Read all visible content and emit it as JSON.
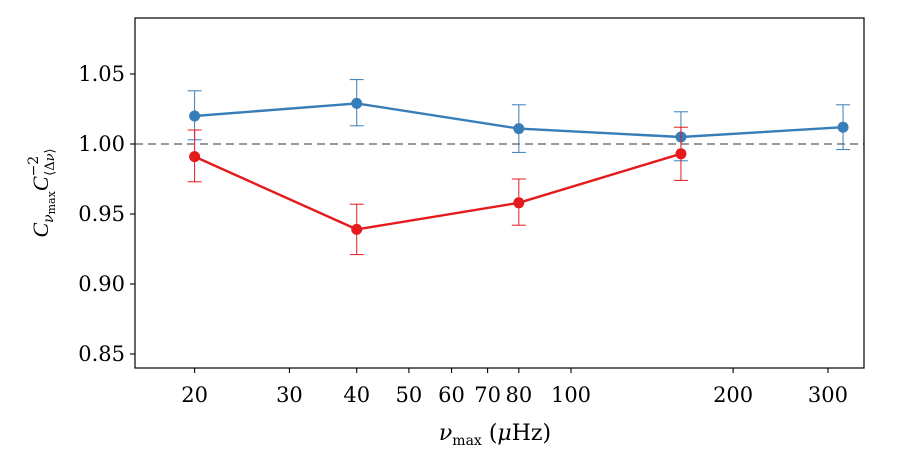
{
  "chart_data": {
    "type": "line",
    "title": "",
    "xlabel": "ν_max (μHz)",
    "ylabel": "C_ν_max C_⟨Δν⟩^−2",
    "xscale": "log",
    "xlim": [
      15.5,
      350
    ],
    "ylim": [
      0.84,
      1.09
    ],
    "xticks": [
      {
        "value": 20,
        "label": "20"
      },
      {
        "value": 30,
        "label": "30"
      },
      {
        "value": 40,
        "label": "40"
      },
      {
        "value": 50,
        "label": "50"
      },
      {
        "value": 60,
        "label": "60"
      },
      {
        "value": 70,
        "label": "70"
      },
      {
        "value": 80,
        "label": "80"
      },
      {
        "value": 100,
        "label": "100"
      },
      {
        "value": 200,
        "label": "200"
      },
      {
        "value": 300,
        "label": "300"
      }
    ],
    "yticks": [
      {
        "value": 0.85,
        "label": "0.85"
      },
      {
        "value": 0.9,
        "label": "0.90"
      },
      {
        "value": 0.95,
        "label": "0.95"
      },
      {
        "value": 1.0,
        "label": "1.00"
      },
      {
        "value": 1.05,
        "label": "1.05"
      }
    ],
    "reference_line": {
      "y": 1.0,
      "style": "dashed",
      "color": "#999999"
    },
    "series": [
      {
        "name": "blue",
        "color": "#377eb8",
        "points": [
          {
            "x": 20,
            "y": 1.02,
            "lo": 1.003,
            "hi": 1.038
          },
          {
            "x": 40,
            "y": 1.029,
            "lo": 1.013,
            "hi": 1.046
          },
          {
            "x": 80,
            "y": 1.011,
            "lo": 0.994,
            "hi": 1.028
          },
          {
            "x": 160,
            "y": 1.005,
            "lo": 0.988,
            "hi": 1.023
          },
          {
            "x": 320,
            "y": 1.012,
            "lo": 0.996,
            "hi": 1.028
          }
        ]
      },
      {
        "name": "red",
        "color": "#e41a1c",
        "points": [
          {
            "x": 20,
            "y": 0.991,
            "lo": 0.973,
            "hi": 1.01
          },
          {
            "x": 40,
            "y": 0.939,
            "lo": 0.921,
            "hi": 0.957
          },
          {
            "x": 80,
            "y": 0.958,
            "lo": 0.942,
            "hi": 0.975
          },
          {
            "x": 160,
            "y": 0.993,
            "lo": 0.974,
            "hi": 1.012
          }
        ]
      }
    ]
  }
}
